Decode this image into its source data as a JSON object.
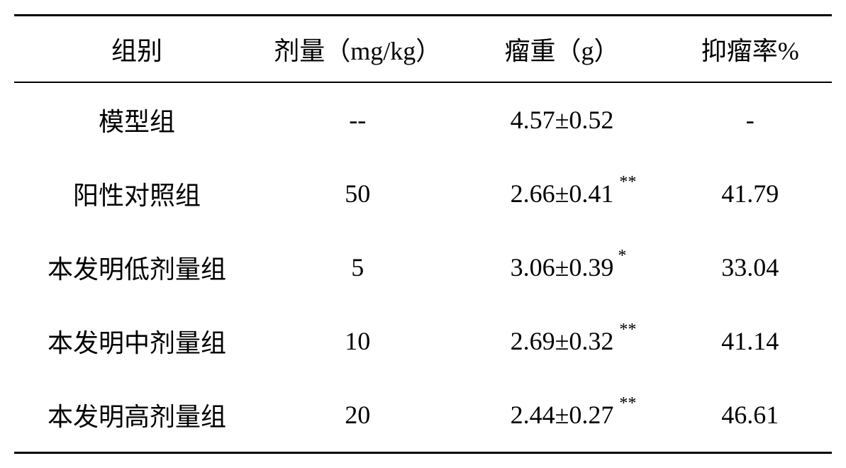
{
  "table": {
    "columns": [
      {
        "label": "组别",
        "class": "col-group"
      },
      {
        "label": "剂量（mg/kg）",
        "class": "col-dose"
      },
      {
        "label": "瘤重（g）",
        "class": "col-weight"
      },
      {
        "label": "抑瘤率%",
        "class": "col-rate"
      }
    ],
    "rows": [
      {
        "group": "模型组",
        "dose": "--",
        "weight": "4.57±0.52",
        "weight_sup": "",
        "rate": "-"
      },
      {
        "group": "阳性对照组",
        "dose": "50",
        "weight": "2.66±0.41",
        "weight_sup": "**",
        "rate": "41.79"
      },
      {
        "group": "本发明低剂量组",
        "dose": "5",
        "weight": "3.06±0.39",
        "weight_sup": "*",
        "rate": "33.04"
      },
      {
        "group": "本发明中剂量组",
        "dose": "10",
        "weight": "2.69±0.32",
        "weight_sup": "**",
        "rate": "41.14"
      },
      {
        "group": "本发明高剂量组",
        "dose": "20",
        "weight": "2.44±0.27",
        "weight_sup": "**",
        "rate": "46.61"
      }
    ],
    "styling": {
      "border_top_width": 3,
      "border_header_bottom_width": 2,
      "border_bottom_width": 3,
      "border_color": "#000000",
      "background_color": "#ffffff",
      "text_color": "#000000",
      "font_size": 36,
      "superscript_font_size": 24,
      "header_padding_y": 20,
      "cell_padding_y": 26
    }
  }
}
